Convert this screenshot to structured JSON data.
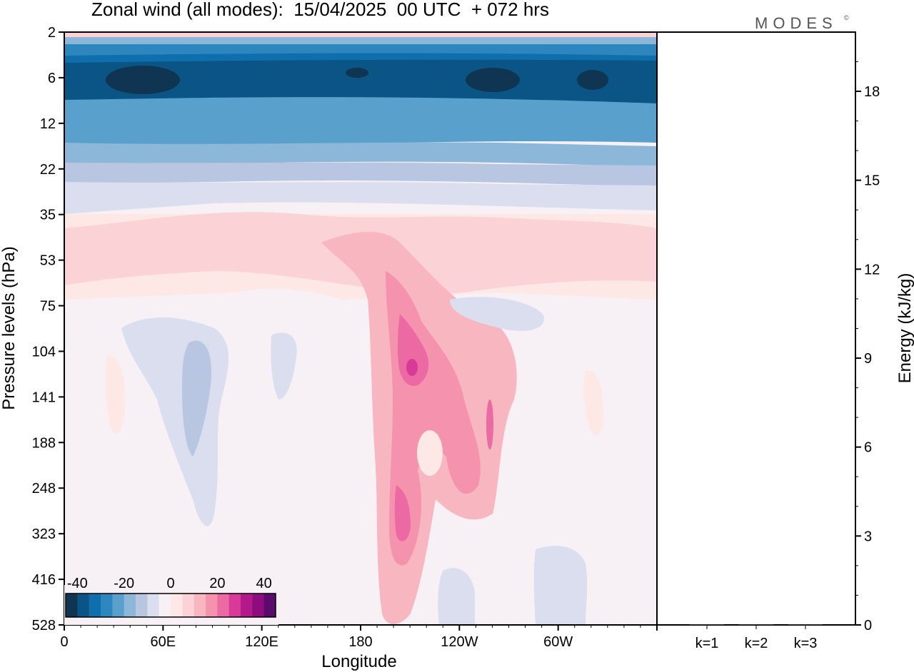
{
  "header": {
    "title": "Zonal wind (all modes):  15/04/2025  00 UTC  + 072 hrs",
    "brand": "MODES",
    "brand_mark": "©"
  },
  "chart_data": [
    {
      "type": "heatmap",
      "title": "Zonal wind (all modes):  15/04/2025  00 UTC  + 072 hrs",
      "xlabel": "Longitude",
      "ylabel": "Pressure levels (hPa)",
      "x_ticks": [
        "0",
        "60E",
        "120E",
        "180",
        "120W",
        "60W"
      ],
      "x_tick_values": [
        0,
        60,
        120,
        180,
        240,
        300
      ],
      "xlim": [
        0,
        360
      ],
      "y_ticks": [
        "2",
        "6",
        "12",
        "22",
        "35",
        "53",
        "75",
        "104",
        "141",
        "188",
        "248",
        "323",
        "416",
        "528"
      ],
      "y_scale": "pressure levels (inverted)",
      "colorbar": {
        "labels": [
          "-40",
          "-20",
          "0",
          "20",
          "40"
        ],
        "range": [
          -45,
          45
        ],
        "colors": [
          "#0f3552",
          "#0a5585",
          "#0f6fad",
          "#2e86bf",
          "#5aa0cc",
          "#8db7d9",
          "#b8c6e2",
          "#dadeee",
          "#f7f1f6",
          "#fde8e6",
          "#fbd3d6",
          "#f8b6c0",
          "#f592ae",
          "#ec6aa4",
          "#d93a98",
          "#b2198a",
          "#8e0d7e",
          "#5b0a6e"
        ]
      },
      "regions": [
        {
          "level": "2-4",
          "lon": [
            0,
            360
          ],
          "value": "0 to 5"
        },
        {
          "level": "5-15",
          "lon": [
            0,
            360
          ],
          "value": "-25 to -40"
        },
        {
          "level": "15-25",
          "lon": [
            0,
            360
          ],
          "value": "-10 to -20"
        },
        {
          "level": "35-75",
          "lon": [
            0,
            360
          ],
          "value": "5 to 10"
        },
        {
          "level": "53-416",
          "lon": [
            185,
            270
          ],
          "value": "10 to 40 (jet)"
        },
        {
          "level": "100-300",
          "lon": [
            40,
            90
          ],
          "value": "-5 to -10"
        }
      ]
    },
    {
      "type": "bar",
      "categories": [
        "k=1",
        "k=2",
        "k=3"
      ],
      "values": [
        0,
        0,
        0
      ],
      "ylabel": "Energy (kJ/kg)",
      "ylim": [
        0,
        20
      ],
      "y_ticks": [
        "0",
        "3",
        "6",
        "9",
        "12",
        "15",
        "18"
      ]
    }
  ]
}
